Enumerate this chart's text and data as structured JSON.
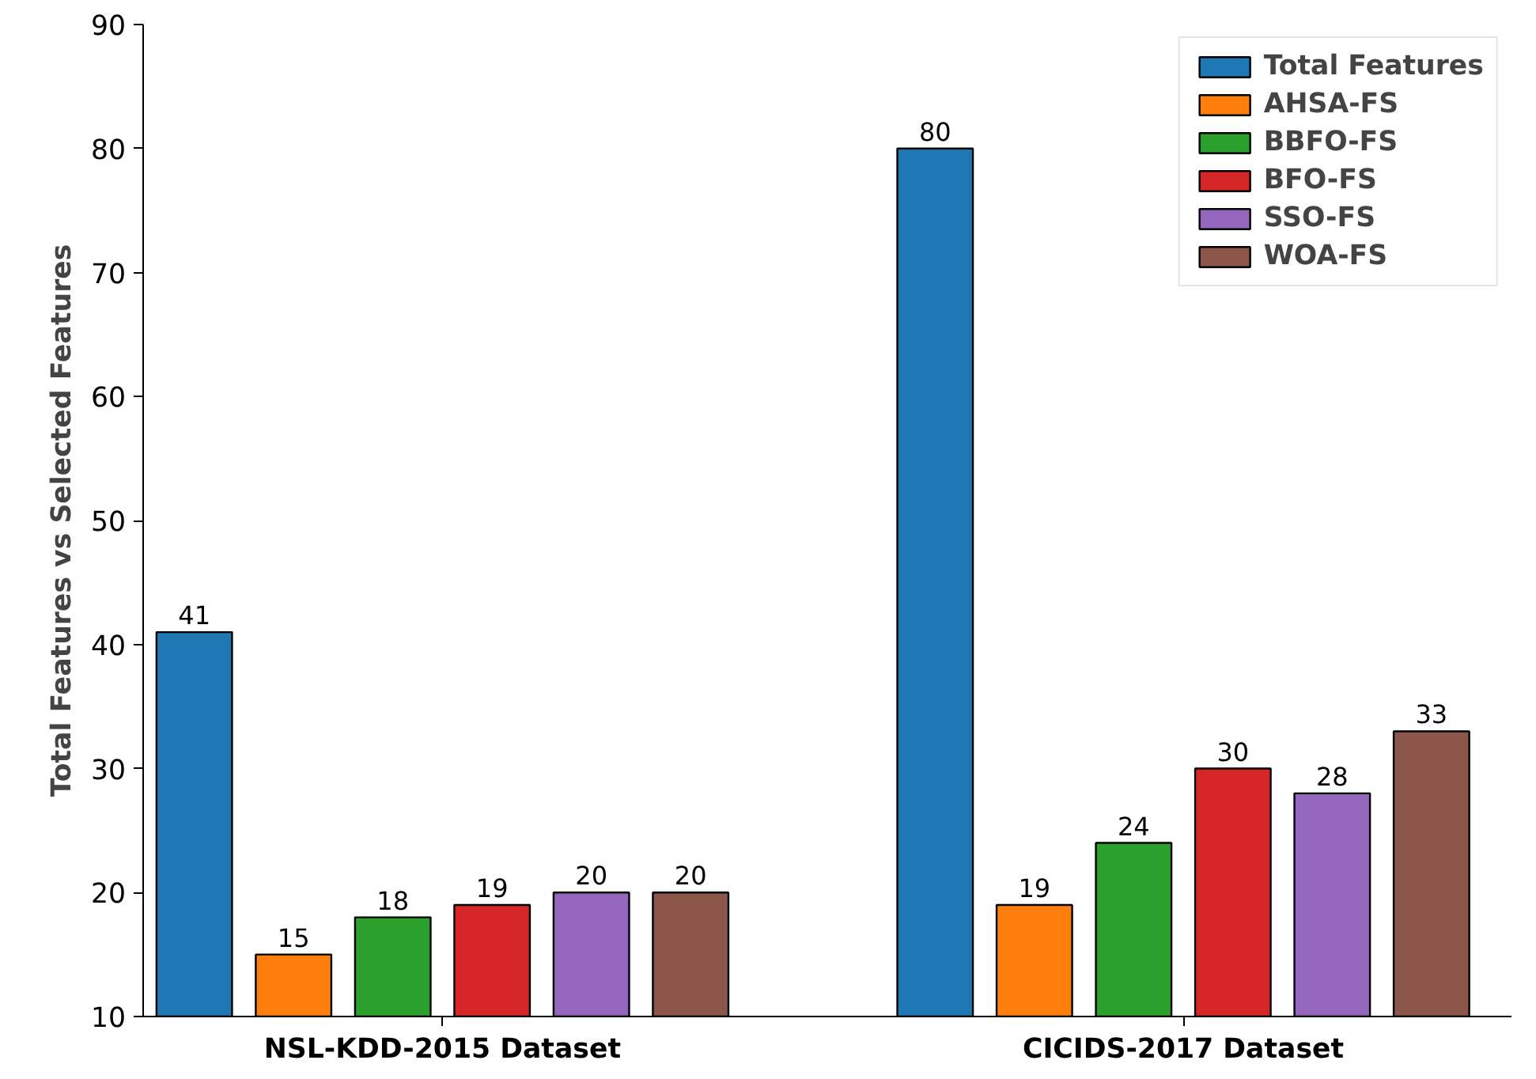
{
  "chart_data": {
    "type": "bar",
    "ylabel": "Total Features vs Selected Features",
    "categories": [
      "NSL-KDD-2015 Dataset",
      "CICIDS-2017 Dataset"
    ],
    "series": [
      {
        "name": "Total Features",
        "color": "#1f77b4",
        "values": [
          41,
          80
        ]
      },
      {
        "name": "AHSA-FS",
        "color": "#ff7f0e",
        "values": [
          15,
          19
        ]
      },
      {
        "name": "BBFO-FS",
        "color": "#2ca02c",
        "values": [
          18,
          24
        ]
      },
      {
        "name": "BFO-FS",
        "color": "#d62728",
        "values": [
          19,
          30
        ]
      },
      {
        "name": "SSO-FS",
        "color": "#9467bd",
        "values": [
          20,
          28
        ]
      },
      {
        "name": "WOA-FS",
        "color": "#8c564b",
        "values": [
          20,
          33
        ]
      }
    ],
    "ylim": [
      10,
      90
    ],
    "yticks": [
      10,
      20,
      30,
      40,
      50,
      60,
      70,
      80,
      90
    ],
    "data_labels": true,
    "legend": "top right"
  }
}
